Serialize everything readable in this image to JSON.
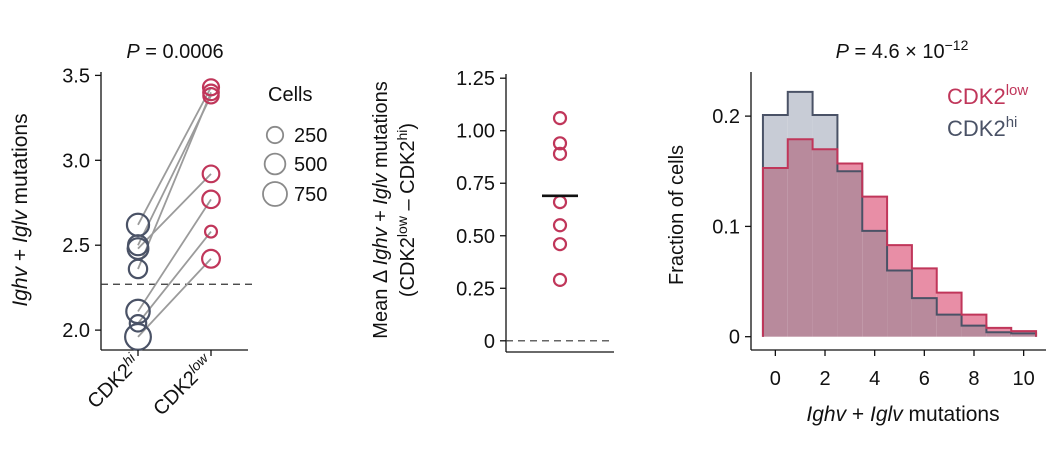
{
  "chart_data": [
    {
      "type": "scatter",
      "title_p_label": "P",
      "title_p_value": "= 0.0006",
      "ylabel_italic_1": "Ighv",
      "ylabel_mid": " + ",
      "ylabel_italic_2": "Iglv",
      "ylabel_rest": " mutations",
      "ylim": [
        1.93,
        3.52
      ],
      "yticks": [
        2.0,
        2.5,
        3.0,
        3.5
      ],
      "ytick_labels": [
        "2.0",
        "2.5",
        "3.0",
        "3.5"
      ],
      "x_categories": [
        {
          "base": "CDK2",
          "sup": "hi"
        },
        {
          "base": "CDK2",
          "sup": "low"
        }
      ],
      "reference_line_y": 2.27,
      "pairs": [
        {
          "hi": 2.62,
          "low": 3.43,
          "cells": 600
        },
        {
          "hi": 2.5,
          "low": 3.38,
          "cells": 450
        },
        {
          "hi": 2.48,
          "low": 2.92,
          "cells": 500
        },
        {
          "hi": 2.36,
          "low": 3.4,
          "cells": 350
        },
        {
          "hi": 2.11,
          "low": 2.77,
          "cells": 700
        },
        {
          "hi": 2.04,
          "low": 2.58,
          "cells": 250
        },
        {
          "hi": 1.96,
          "low": 2.42,
          "cells": 900
        }
      ],
      "low_sizes": [
        230,
        200,
        260,
        210,
        300,
        80,
        320
      ],
      "colors": {
        "hi": "#4a5266",
        "low": "#c0365a",
        "line": "#9b9b9b",
        "legend": "#8a8a8a"
      },
      "legend": {
        "title": "Cells",
        "entries": [
          {
            "label": "250",
            "cells": 250
          },
          {
            "label": "500",
            "cells": 500
          },
          {
            "label": "750",
            "cells": 750
          }
        ]
      }
    },
    {
      "type": "scatter",
      "ylabel_line1_a": "Mean ",
      "ylabel_line1_delta": "Δ ",
      "ylabel_line1_i1": "Ighv",
      "ylabel_line1_mid": " + ",
      "ylabel_line1_i2": "Iglv",
      "ylabel_line1_rest": " mutations",
      "ylabel_line2_a": "(CDK2",
      "ylabel_line2_sup1": "low",
      "ylabel_line2_b": " – CDK2",
      "ylabel_line2_sup2": "hi",
      "ylabel_line2_c": ")",
      "ylim": [
        -0.02,
        1.27
      ],
      "yticks": [
        0,
        0.25,
        0.5,
        0.75,
        1.0,
        1.25
      ],
      "ytick_labels": [
        "0",
        "0.25",
        "0.50",
        "0.75",
        "1.00",
        "1.25"
      ],
      "values": [
        1.06,
        0.94,
        0.89,
        0.66,
        0.55,
        0.46,
        0.29
      ],
      "mean": 0.69,
      "reference_line_y": 0,
      "colors": {
        "points": "#c0365a",
        "mean": "#111111"
      }
    },
    {
      "type": "bar",
      "title_p_label": "P",
      "title_p_value": "= 4.6 × 10",
      "title_p_exp": "−12",
      "xlabel_italic_1": "Ighv",
      "xlabel_mid": " + ",
      "xlabel_italic_2": "Iglv",
      "xlabel_rest": " mutations",
      "ylabel": "Fraction of cells",
      "xlim": [
        -0.9,
        10.9
      ],
      "ylim": [
        -0.003,
        0.24
      ],
      "xticks": [
        0,
        2,
        4,
        6,
        8,
        10
      ],
      "xtick_labels": [
        "0",
        "2",
        "4",
        "6",
        "8",
        "10"
      ],
      "yticks": [
        0,
        0.1,
        0.2
      ],
      "ytick_labels": [
        "0",
        "0.1",
        "0.2"
      ],
      "bin_edges": [
        -0.5,
        0.5,
        1.5,
        2.5,
        3.5,
        4.5,
        5.5,
        6.5,
        7.5,
        8.5,
        9.5,
        10.5
      ],
      "series": [
        {
          "name_base": "CDK2",
          "name_sup": "hi",
          "values": [
            0.201,
            0.222,
            0.201,
            0.15,
            0.096,
            0.06,
            0.035,
            0.02,
            0.01,
            0.004,
            0.003
          ],
          "color": "#4a5266",
          "fill": "#c8ccd6"
        },
        {
          "name_base": "CDK2",
          "name_sup": "low",
          "values": [
            0.153,
            0.179,
            0.17,
            0.157,
            0.127,
            0.083,
            0.062,
            0.04,
            0.02,
            0.008,
            0.005
          ],
          "color": "#c0365a",
          "fill": "#e88ea6"
        }
      ],
      "overlap_fill": "#b88a9c"
    }
  ]
}
